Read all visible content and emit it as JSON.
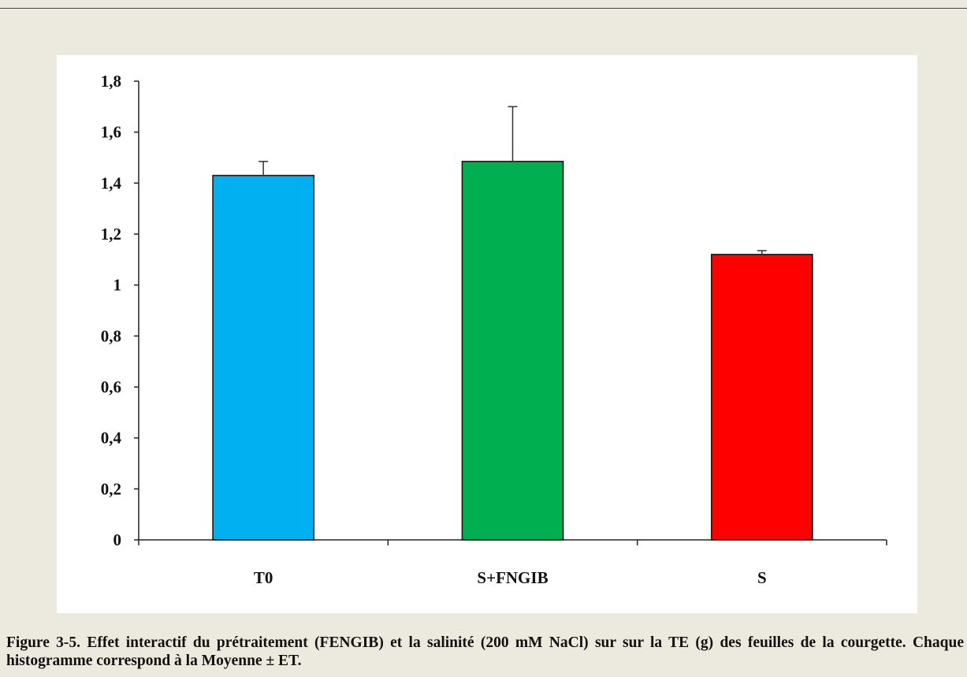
{
  "chart_data": {
    "type": "bar",
    "categories": [
      "T0",
      "S+FNGIB",
      "S"
    ],
    "values": [
      1.43,
      1.485,
      1.12
    ],
    "error": [
      0.055,
      0.215,
      0.015
    ],
    "colors": [
      "#00b0f0",
      "#00b050",
      "#ff0000"
    ],
    "ylim": [
      0,
      1.8
    ],
    "yticks": [
      0,
      0.2,
      0.4,
      0.6,
      0.8,
      1,
      1.2,
      1.4,
      1.6,
      1.8
    ],
    "ytick_labels": [
      "0",
      "0,2",
      "0,4",
      "0,6",
      "0,8",
      "1",
      "1,2",
      "1,4",
      "1,6",
      "1,8"
    ],
    "grid": false,
    "legend": false
  },
  "caption": "Figure 3-5. Effet interactif du prétraitement (FENGIB) et la salinité (200 mM NaCl) sur sur la TE (g) des feuilles de la courgette. Chaque histogramme correspond à la Moyenne ± ET."
}
